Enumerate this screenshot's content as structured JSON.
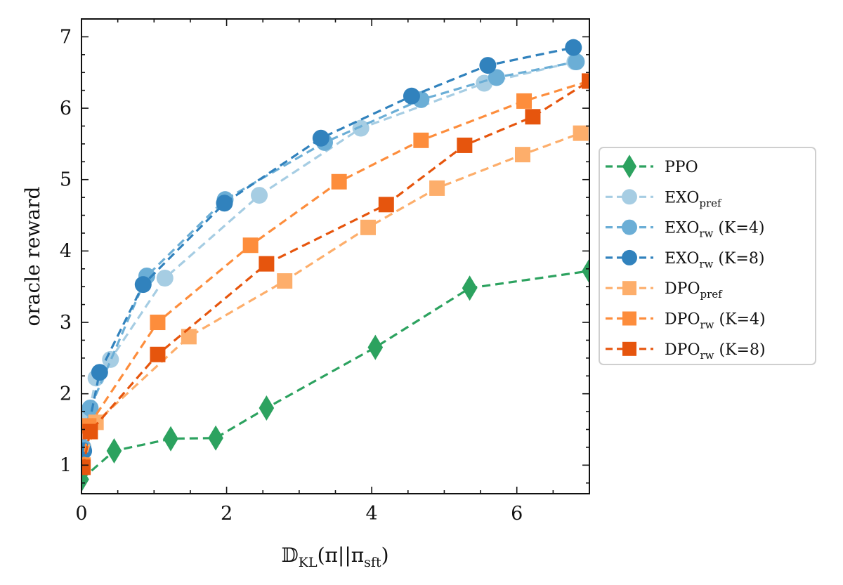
{
  "chart_data": {
    "type": "line",
    "title": "",
    "xlabel": "𝔻_KL(π||π_sft)",
    "xlabel_parts": {
      "main": "𝔻",
      "sub": "KL",
      "arg": "(π||π",
      "argsub": "sft",
      "close": ")"
    },
    "ylabel": "oracle reward",
    "xlim": [
      0,
      7
    ],
    "ylim": [
      0.6,
      7.25
    ],
    "x_ticks": [
      0,
      2,
      4,
      6
    ],
    "y_ticks": [
      1,
      2,
      3,
      4,
      5,
      6,
      7
    ],
    "x_tick_labels": [
      "0",
      "2",
      "4",
      "6"
    ],
    "y_tick_labels": [
      "1",
      "2",
      "3",
      "4",
      "5",
      "6",
      "7"
    ],
    "grid": false,
    "legend_position": "center-right (outside)",
    "series": [
      {
        "name": "PPO",
        "label_main": "PPO",
        "label_sub": "",
        "label_suffix": "",
        "color": "#2ca25f",
        "marker": "diamond",
        "x": [
          0,
          0.45,
          1.23,
          1.85,
          2.55,
          4.05,
          5.35,
          7.0
        ],
        "y": [
          0.8,
          1.2,
          1.37,
          1.38,
          1.8,
          2.65,
          3.48,
          3.72
        ]
      },
      {
        "name": "EXO_pref",
        "label_main": "EXO",
        "label_sub": "pref",
        "label_suffix": "",
        "color": "#a6cde3",
        "marker": "circle",
        "x": [
          0.02,
          0.1,
          0.2,
          0.4,
          1.15,
          2.45,
          3.85,
          5.55,
          6.8
        ],
        "y": [
          1.2,
          1.7,
          2.22,
          2.48,
          3.62,
          4.78,
          5.72,
          6.35,
          6.65
        ]
      },
      {
        "name": "EXO_rw (K=4)",
        "label_main": "EXO",
        "label_sub": "rw",
        "label_suffix": " (K=4)",
        "color": "#6baed6",
        "marker": "circle",
        "x": [
          0.02,
          0.12,
          0.9,
          1.98,
          3.35,
          4.68,
          5.72,
          6.82
        ],
        "y": [
          1.25,
          1.8,
          3.65,
          4.72,
          5.52,
          6.12,
          6.43,
          6.65
        ]
      },
      {
        "name": "EXO_rw (K=8)",
        "label_main": "EXO",
        "label_sub": "rw",
        "label_suffix": " (K=8)",
        "color": "#3182bd",
        "marker": "circle",
        "x": [
          0.03,
          0.25,
          0.85,
          1.97,
          3.3,
          4.55,
          5.6,
          6.78
        ],
        "y": [
          1.2,
          2.3,
          3.53,
          4.67,
          5.58,
          6.17,
          6.6,
          6.85
        ]
      },
      {
        "name": "DPO_pref",
        "label_main": "DPO",
        "label_sub": "pref",
        "label_suffix": "",
        "color": "#fdae6b",
        "marker": "square",
        "x": [
          0.02,
          0.2,
          1.48,
          2.8,
          3.95,
          4.9,
          6.08,
          6.88
        ],
        "y": [
          1.0,
          1.6,
          2.8,
          3.58,
          4.33,
          4.88,
          5.35,
          5.65
        ]
      },
      {
        "name": "DPO_rw (K=4)",
        "label_main": "DPO",
        "label_sub": "rw",
        "label_suffix": " (K=4)",
        "color": "#fd8d3c",
        "marker": "square",
        "x": [
          0.02,
          0.1,
          1.05,
          2.33,
          3.55,
          4.68,
          6.1,
          7.0
        ],
        "y": [
          1.0,
          1.55,
          3.0,
          4.08,
          4.97,
          5.55,
          6.1,
          6.38
        ]
      },
      {
        "name": "DPO_rw (K=8)",
        "label_main": "DPO",
        "label_sub": "rw",
        "label_suffix": " (K=8)",
        "color": "#e6550d",
        "marker": "square",
        "x": [
          0.02,
          0.12,
          1.05,
          2.55,
          4.2,
          5.28,
          6.22,
          7.0
        ],
        "y": [
          0.97,
          1.47,
          2.55,
          3.82,
          4.65,
          5.48,
          5.88,
          6.38
        ]
      }
    ]
  }
}
